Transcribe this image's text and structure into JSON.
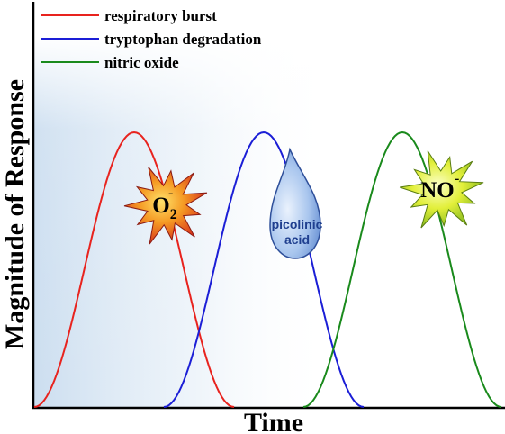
{
  "chart_data": {
    "type": "line",
    "title": "",
    "xlabel": "Time",
    "ylabel": "Magnitude of Response",
    "grid": false,
    "legend_position": "top-left",
    "series": [
      {
        "name": "respiratory burst",
        "color": "#e8231e",
        "shape": "bell",
        "peak": 1.0
      },
      {
        "name": "tryptophan degradation",
        "color": "#1b1ed6",
        "shape": "bell",
        "peak": 1.0
      },
      {
        "name": "nitric oxide",
        "color": "#1a8a1c",
        "shape": "bell",
        "peak": 1.0
      }
    ],
    "annotations": [
      {
        "id": "superoxide",
        "text_main": "O",
        "text_sup": "-",
        "text_sub": "2",
        "style": "starburst",
        "fill": "#e8521b",
        "near_series": "respiratory burst"
      },
      {
        "id": "picolinic",
        "lines": [
          "picolinic",
          "acid"
        ],
        "style": "droplet",
        "fill": "#8fb2e6",
        "near_series": "tryptophan degradation"
      },
      {
        "id": "nitric",
        "text_main": "NO",
        "text_sup": "-",
        "style": "starburst",
        "fill": "#d6e82a",
        "near_series": "nitric oxide"
      }
    ]
  }
}
